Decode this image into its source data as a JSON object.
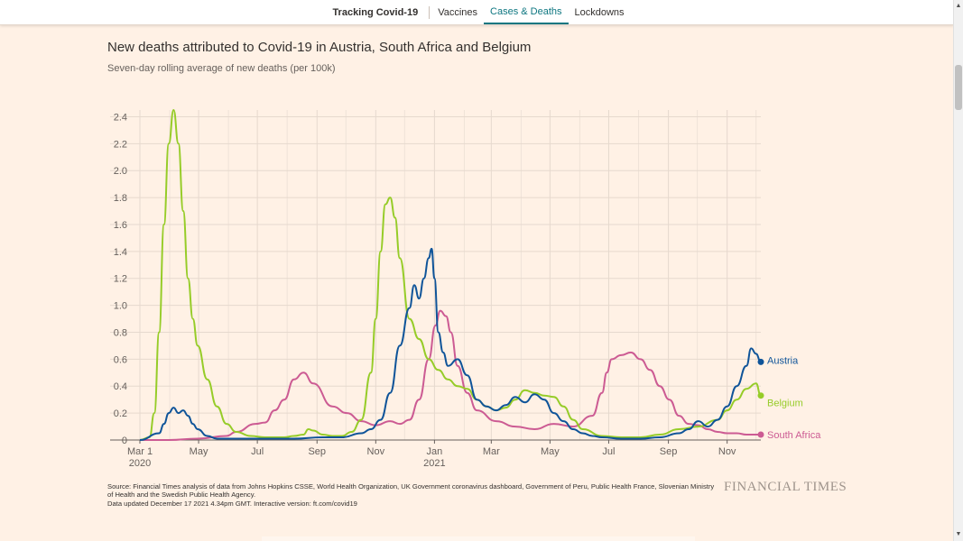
{
  "nav": {
    "brand": "Tracking Covid-19",
    "links": [
      "Vaccines",
      "Cases & Deaths",
      "Lockdowns"
    ],
    "active_index": 1
  },
  "chart_data": {
    "type": "line",
    "title": "New deaths attributed to Covid-19 in Austria, South Africa and Belgium",
    "subtitle": "Seven-day rolling average of new deaths (per 100k)",
    "xlabel": "",
    "ylabel": "",
    "xlim": [
      0,
      645
    ],
    "ylim": [
      0,
      2.45
    ],
    "grid": true,
    "y_ticks": [
      0,
      0.2,
      0.4,
      0.6,
      0.8,
      1.0,
      1.2,
      1.4,
      1.6,
      1.8,
      2.0,
      2.2,
      2.4
    ],
    "y_tick_labels": [
      "0",
      "0.2",
      "0.4",
      "0.6",
      "0.8",
      "1.0",
      "1.2",
      "1.4",
      "1.6",
      "1.8",
      "2.0",
      "2.2",
      "2.4"
    ],
    "x_ticks": [
      {
        "day": 0,
        "label": "Mar 1",
        "sub": "2020"
      },
      {
        "day": 61,
        "label": "May"
      },
      {
        "day": 122,
        "label": "Jul"
      },
      {
        "day": 184,
        "label": "Sep"
      },
      {
        "day": 245,
        "label": "Nov"
      },
      {
        "day": 306,
        "label": "Jan",
        "sub": "2021"
      },
      {
        "day": 365,
        "label": "Mar"
      },
      {
        "day": 426,
        "label": "May"
      },
      {
        "day": 487,
        "label": "Jul"
      },
      {
        "day": 549,
        "label": "Sep"
      },
      {
        "day": 610,
        "label": "Nov"
      }
    ],
    "x_minor_ticks": [
      31,
      92,
      153,
      214,
      275,
      337,
      396,
      457,
      518,
      579,
      640
    ],
    "series": [
      {
        "name": "South Africa",
        "color": "#cc5b93",
        "x": [
          0,
          30,
          60,
          90,
          100,
          120,
          130,
          140,
          150,
          160,
          170,
          180,
          200,
          215,
          230,
          245,
          260,
          270,
          280,
          290,
          300,
          307,
          312,
          318,
          323,
          330,
          340,
          350,
          370,
          390,
          410,
          430,
          450,
          470,
          480,
          485,
          490,
          500,
          510,
          520,
          530,
          540,
          550,
          560,
          570,
          580,
          590,
          600,
          610,
          620,
          630,
          645
        ],
        "values": [
          0,
          0,
          0.01,
          0.03,
          0.06,
          0.12,
          0.13,
          0.22,
          0.3,
          0.45,
          0.5,
          0.42,
          0.25,
          0.2,
          0.14,
          0.11,
          0.14,
          0.12,
          0.15,
          0.3,
          0.6,
          0.85,
          0.96,
          0.92,
          0.8,
          0.55,
          0.35,
          0.22,
          0.14,
          0.1,
          0.08,
          0.12,
          0.1,
          0.18,
          0.35,
          0.5,
          0.6,
          0.63,
          0.65,
          0.6,
          0.52,
          0.4,
          0.3,
          0.18,
          0.12,
          0.11,
          0.08,
          0.06,
          0.05,
          0.05,
          0.04,
          0.04
        ]
      },
      {
        "name": "Belgium",
        "color": "#96cc28",
        "x": [
          0,
          10,
          15,
          20,
          25,
          30,
          35,
          40,
          45,
          50,
          55,
          60,
          70,
          80,
          90,
          100,
          115,
          130,
          150,
          160,
          170,
          175,
          180,
          190,
          200,
          210,
          220,
          230,
          240,
          245,
          250,
          255,
          260,
          265,
          270,
          280,
          290,
          300,
          310,
          320,
          330,
          340,
          350,
          360,
          370,
          380,
          390,
          400,
          410,
          420,
          430,
          440,
          450,
          460,
          480,
          500,
          520,
          540,
          560,
          580,
          600,
          610,
          620,
          630,
          640,
          645
        ],
        "values": [
          0,
          0.02,
          0.2,
          0.8,
          1.6,
          2.2,
          2.45,
          2.2,
          1.7,
          1.2,
          0.9,
          0.7,
          0.45,
          0.25,
          0.12,
          0.06,
          0.03,
          0.02,
          0.02,
          0.03,
          0.04,
          0.08,
          0.07,
          0.04,
          0.03,
          0.03,
          0.06,
          0.15,
          0.5,
          0.9,
          1.4,
          1.75,
          1.8,
          1.65,
          1.35,
          0.9,
          0.75,
          0.6,
          0.52,
          0.45,
          0.4,
          0.38,
          0.3,
          0.25,
          0.22,
          0.24,
          0.3,
          0.37,
          0.35,
          0.33,
          0.32,
          0.25,
          0.15,
          0.08,
          0.03,
          0.02,
          0.02,
          0.04,
          0.08,
          0.1,
          0.15,
          0.22,
          0.3,
          0.38,
          0.42,
          0.33
        ]
      },
      {
        "name": "Austria",
        "color": "#0f5499",
        "x": [
          0,
          20,
          25,
          30,
          35,
          40,
          45,
          50,
          55,
          60,
          70,
          80,
          100,
          130,
          160,
          190,
          210,
          230,
          240,
          250,
          260,
          270,
          280,
          285,
          290,
          295,
          300,
          303,
          306,
          310,
          315,
          320,
          330,
          340,
          350,
          360,
          370,
          380,
          390,
          400,
          410,
          420,
          430,
          440,
          450,
          460,
          470,
          480,
          500,
          520,
          540,
          560,
          570,
          580,
          590,
          600,
          610,
          620,
          630,
          635,
          640,
          645
        ],
        "values": [
          0,
          0.05,
          0.12,
          0.2,
          0.24,
          0.2,
          0.22,
          0.18,
          0.12,
          0.08,
          0.03,
          0.01,
          0.01,
          0.01,
          0.01,
          0.02,
          0.02,
          0.05,
          0.08,
          0.15,
          0.35,
          0.7,
          0.98,
          1.15,
          1.05,
          1.2,
          1.35,
          1.42,
          1.2,
          0.8,
          0.65,
          0.55,
          0.6,
          0.48,
          0.3,
          0.25,
          0.22,
          0.26,
          0.32,
          0.28,
          0.34,
          0.3,
          0.2,
          0.14,
          0.08,
          0.05,
          0.03,
          0.02,
          0.01,
          0.01,
          0.02,
          0.05,
          0.08,
          0.14,
          0.1,
          0.15,
          0.25,
          0.4,
          0.55,
          0.68,
          0.64,
          0.58
        ]
      }
    ],
    "source": "Source: Financial Times analysis of data from Johns Hopkins CSSE, World Health Organization, UK Government coronavirus dashboard, Government of Peru, Public Health France, Slovenian Ministry of Health and the Swedish Public Health Agency.",
    "updated": "Data updated December 17 2021 4.34pm GMT. Interactive version: ft.com/covid19"
  },
  "brand_logo": "FINANCIAL TIMES"
}
